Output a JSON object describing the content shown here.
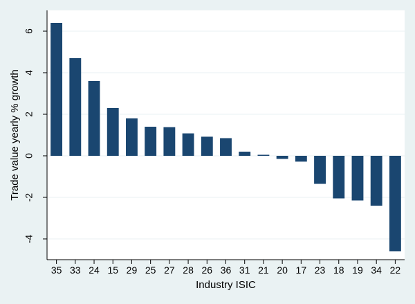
{
  "chart_data": {
    "type": "bar",
    "title": "",
    "xlabel": "Industry ISIC",
    "ylabel": "Trade value yearly % growth",
    "categories": [
      "35",
      "33",
      "24",
      "15",
      "29",
      "25",
      "27",
      "28",
      "26",
      "36",
      "31",
      "21",
      "20",
      "17",
      "23",
      "18",
      "19",
      "34",
      "22"
    ],
    "values": [
      6.4,
      4.7,
      3.6,
      2.3,
      1.8,
      1.4,
      1.38,
      1.08,
      0.92,
      0.85,
      0.2,
      0.05,
      -0.15,
      -0.28,
      -1.35,
      -2.05,
      -2.15,
      -2.4,
      -4.6
    ],
    "yticks": [
      -4,
      -2,
      0,
      2,
      4,
      6
    ],
    "ylim": [
      -5,
      7
    ],
    "grid": true,
    "bar_color": "#1a4670",
    "plot_background": "#ffffff",
    "page_background": "#eaf2f3",
    "grid_color": "#eaf2f3"
  }
}
